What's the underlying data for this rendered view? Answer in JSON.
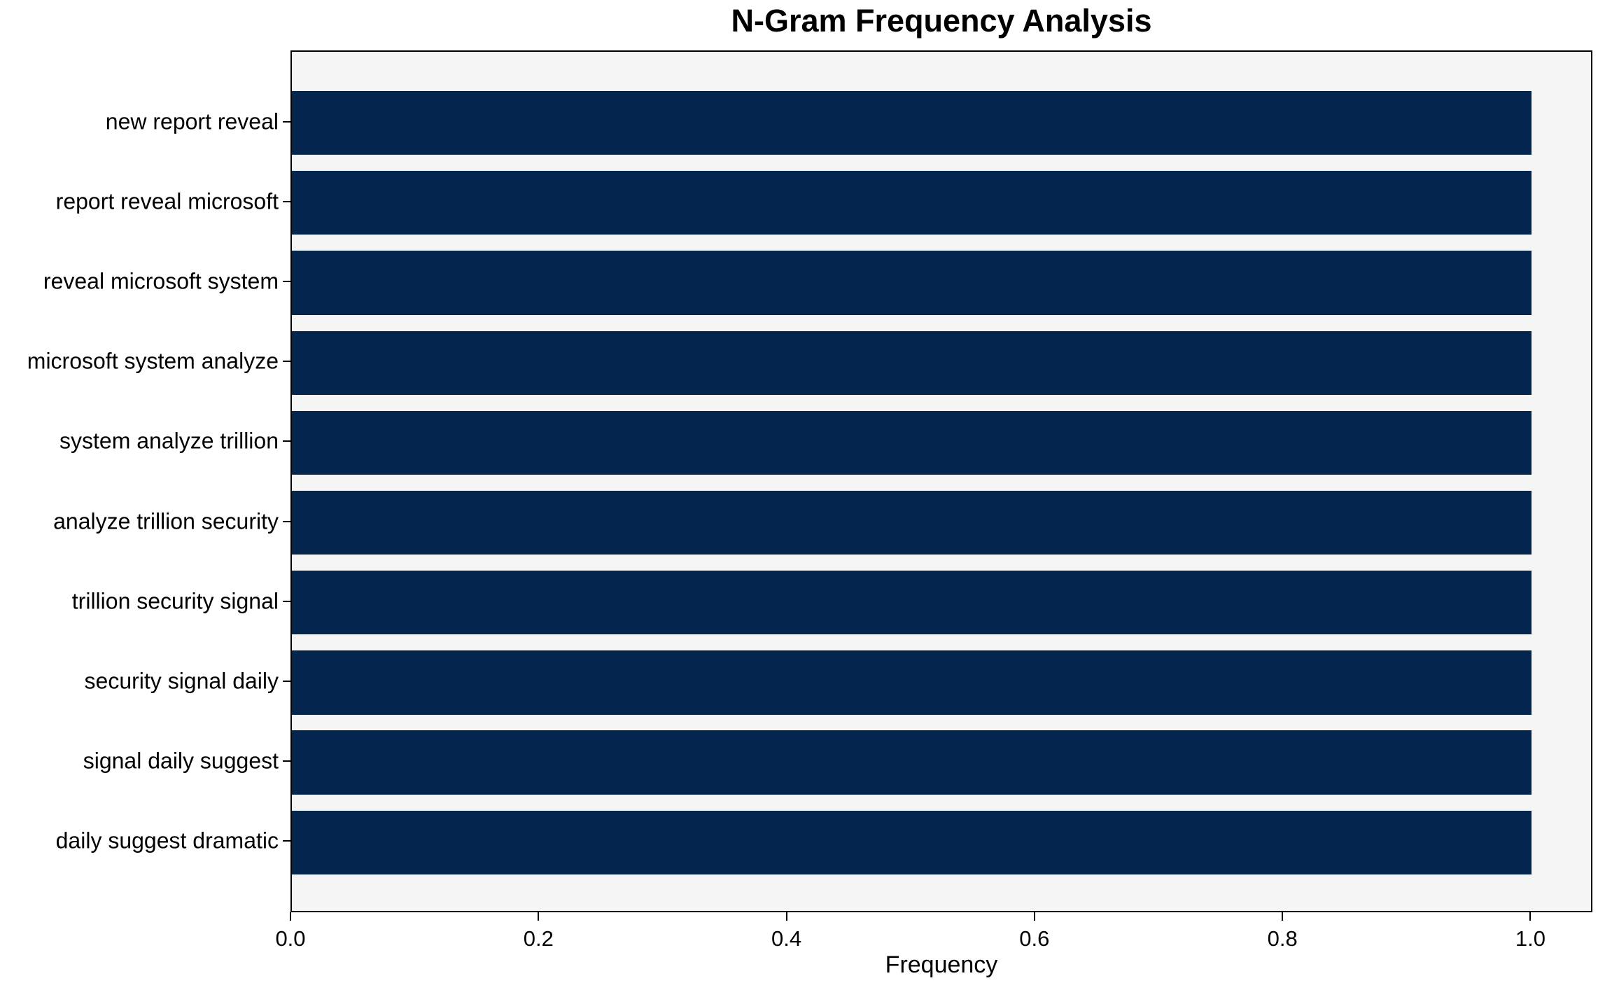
{
  "chart_data": {
    "type": "bar",
    "orientation": "horizontal",
    "title": "N-Gram Frequency Analysis",
    "xlabel": "Frequency",
    "ylabel": "",
    "categories": [
      "new report reveal",
      "report reveal microsoft",
      "reveal microsoft system",
      "microsoft system analyze",
      "system analyze trillion",
      "analyze trillion security",
      "trillion security signal",
      "security signal daily",
      "signal daily suggest",
      "daily suggest dramatic"
    ],
    "values": [
      1.0,
      1.0,
      1.0,
      1.0,
      1.0,
      1.0,
      1.0,
      1.0,
      1.0,
      1.0
    ],
    "xlim": [
      0,
      1.05
    ],
    "xticks": [
      0.0,
      0.2,
      0.4,
      0.6,
      0.8,
      1.0
    ],
    "xtick_labels": [
      "0.0",
      "0.2",
      "0.4",
      "0.6",
      "0.8",
      "1.0"
    ],
    "bar_color": "#03254e",
    "plot_background": "#f5f5f5",
    "figure_background": "#ffffff",
    "grid": false,
    "legend": null
  }
}
